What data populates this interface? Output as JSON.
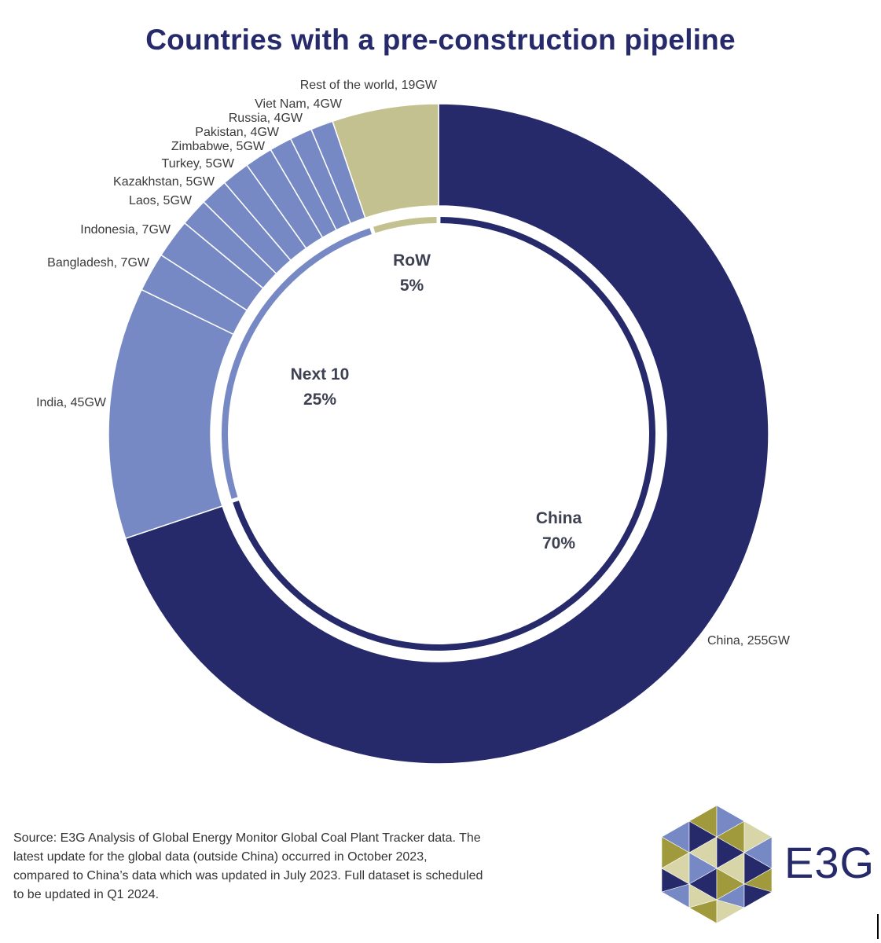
{
  "title": "Countries with a pre-construction pipeline",
  "chart_data": {
    "type": "pie",
    "title": "Countries with a pre-construction pipeline",
    "unit": "GW",
    "outer_ring": [
      {
        "label": "China, 255GW",
        "name": "China",
        "value": 255,
        "color": "#262a6b"
      },
      {
        "label": "India, 45GW",
        "name": "India",
        "value": 45,
        "color": "#7689c4"
      },
      {
        "label": "Bangladesh, 7GW",
        "name": "Bangladesh",
        "value": 7,
        "color": "#7689c4"
      },
      {
        "label": "Indonesia, 7GW",
        "name": "Indonesia",
        "value": 7,
        "color": "#7689c4"
      },
      {
        "label": "Laos, 5GW",
        "name": "Laos",
        "value": 5,
        "color": "#7689c4"
      },
      {
        "label": "Kazakhstan, 5GW",
        "name": "Kazakhstan",
        "value": 5,
        "color": "#7689c4"
      },
      {
        "label": "Turkey, 5GW",
        "name": "Turkey",
        "value": 5,
        "color": "#7689c4"
      },
      {
        "label": "Zimbabwe, 5GW",
        "name": "Zimbabwe",
        "value": 5,
        "color": "#7689c4"
      },
      {
        "label": "Pakistan, 4GW",
        "name": "Pakistan",
        "value": 4,
        "color": "#7689c4"
      },
      {
        "label": "Russia, 4GW",
        "name": "Russia",
        "value": 4,
        "color": "#7689c4"
      },
      {
        "label": "Viet Nam, 4GW",
        "name": "Viet Nam",
        "value": 4,
        "color": "#7689c4"
      },
      {
        "label": "Rest of the world, 19GW",
        "name": "Rest of the world",
        "value": 19,
        "color": "#c4c191"
      }
    ],
    "inner_ring": [
      {
        "name": "China",
        "percent": 70,
        "color": "#262a6b"
      },
      {
        "name": "Next 10",
        "percent": 25,
        "color": "#7689c4"
      },
      {
        "name": "RoW",
        "percent": 5,
        "color": "#c4c191"
      }
    ],
    "inner_labels": [
      {
        "line1": "RoW",
        "line2": "5%"
      },
      {
        "line1": "Next 10",
        "line2": "25%"
      },
      {
        "line1": "China",
        "line2": "70%"
      }
    ]
  },
  "source_note": "Source: E3G Analysis of Global Energy Monitor Global Coal Plant Tracker data. The latest update for the global data (outside China) occurred in October 2023, compared to China’s data which was updated in July 2023. Full dataset is scheduled to be updated in Q1 2024.",
  "logo": {
    "text": "E3G",
    "colors": [
      "#262a6b",
      "#7689c4",
      "#a09a3c",
      "#d8d6a8"
    ]
  }
}
